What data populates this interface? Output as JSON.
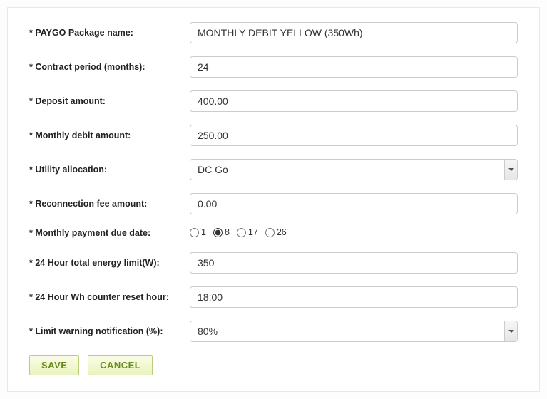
{
  "form": {
    "package_name": {
      "label": "* PAYGO Package name:",
      "value": "MONTHLY DEBIT YELLOW (350Wh)"
    },
    "contract_period": {
      "label": "* Contract period (months):",
      "value": "24"
    },
    "deposit": {
      "label": "* Deposit amount:",
      "value": "400.00"
    },
    "monthly_debit": {
      "label": "* Monthly debit amount:",
      "value": "250.00"
    },
    "utility_allocation": {
      "label": "* Utility allocation:",
      "value": "DC Go"
    },
    "reconnection_fee": {
      "label": "* Reconnection fee amount:",
      "value": "0.00"
    },
    "due_date": {
      "label": "* Monthly payment due date:",
      "options": [
        "1",
        "8",
        "17",
        "26"
      ],
      "selected": "8"
    },
    "energy_limit": {
      "label": "* 24 Hour total energy limit(W):",
      "value": "350"
    },
    "reset_hour": {
      "label": "* 24 Hour Wh counter reset hour:",
      "value": "18:00"
    },
    "limit_warning": {
      "label": "* Limit warning notification (%):",
      "value": "80%"
    }
  },
  "buttons": {
    "save": "Save",
    "cancel": "Cancel"
  }
}
